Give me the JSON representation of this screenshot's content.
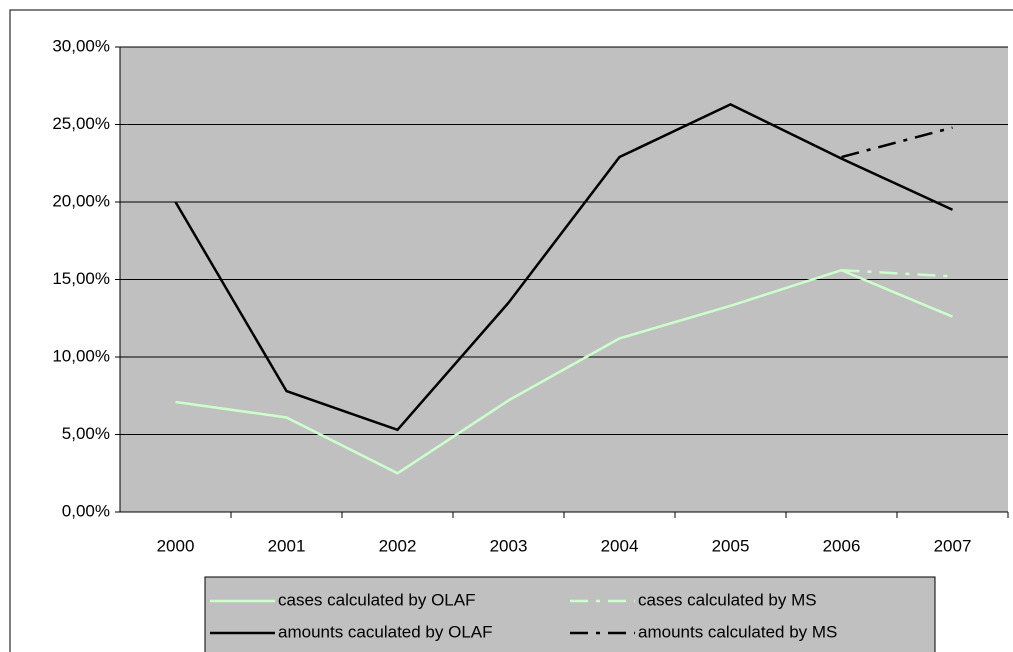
{
  "chart_data": {
    "type": "line",
    "categories": [
      "2000",
      "2001",
      "2002",
      "2003",
      "2004",
      "2005",
      "2006",
      "2007"
    ],
    "series": [
      {
        "name": "cases calculated by OLAF",
        "color": "#ccffcc",
        "dash": "solid",
        "values": [
          7.1,
          6.1,
          2.5,
          7.2,
          11.2,
          13.3,
          15.6,
          12.6
        ]
      },
      {
        "name": "cases calculated by MS",
        "color": "#ccffcc",
        "dash": "dashdot",
        "values": [
          null,
          null,
          null,
          null,
          null,
          null,
          15.6,
          15.2
        ]
      },
      {
        "name": "amounts caculated by OLAF",
        "color": "#000000",
        "dash": "solid",
        "values": [
          20.0,
          7.8,
          5.3,
          13.5,
          22.9,
          26.3,
          22.8,
          19.5
        ]
      },
      {
        "name": "amounts calculated by MS",
        "color": "#000000",
        "dash": "dashdot",
        "values": [
          null,
          null,
          null,
          null,
          null,
          null,
          22.9,
          24.8
        ]
      }
    ],
    "ylim": [
      0,
      30
    ],
    "yticks": [
      {
        "value": 0,
        "label": "0,00%"
      },
      {
        "value": 5,
        "label": "5,00%"
      },
      {
        "value": 10,
        "label": "10,00%"
      },
      {
        "value": 15,
        "label": "15,00%"
      },
      {
        "value": 20,
        "label": "20,00%"
      },
      {
        "value": 25,
        "label": "25,00%"
      },
      {
        "value": 30,
        "label": "30,00%"
      }
    ],
    "grid": true,
    "plot_background": "#c0c0c0",
    "legend": "bottom"
  }
}
